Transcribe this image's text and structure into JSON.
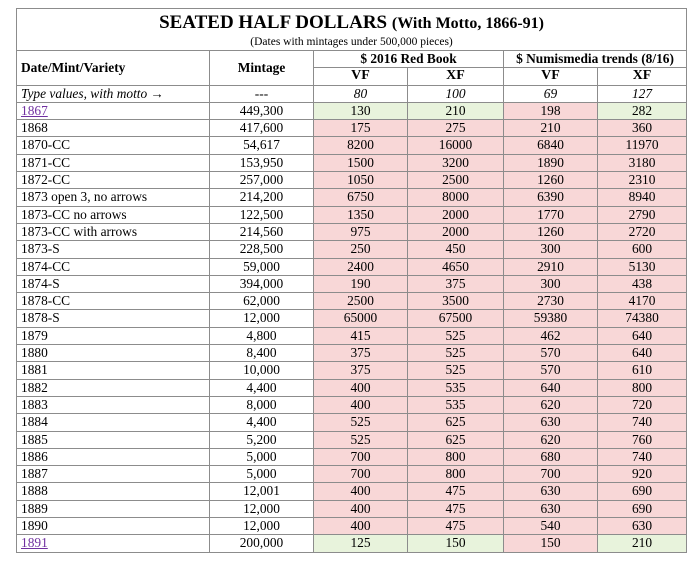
{
  "title": "SEATED HALF DOLLARS",
  "title_paren": "(With Motto, 1866-91)",
  "subtitle": "(Dates with mintages under 500,000 pieces)",
  "headers": {
    "date": "Date/Mint/Variety",
    "mintage": "Mintage",
    "redbook": "$ 2016 Red Book",
    "numismedia": "$ Numismedia trends (8/16)",
    "vf": "VF",
    "xf": "XF"
  },
  "type_row": {
    "label": "Type values, with motto →",
    "mintage": "---",
    "rb_vf": "80",
    "rb_xf": "100",
    "nm_vf": "69",
    "nm_xf": "127"
  },
  "rows": [
    {
      "date": "1867",
      "mintage": "449,300",
      "rb_vf": "130",
      "rb_xf": "210",
      "nm_vf": "198",
      "nm_xf": "282"
    },
    {
      "date": "1868",
      "mintage": "417,600",
      "rb_vf": "175",
      "rb_xf": "275",
      "nm_vf": "210",
      "nm_xf": "360"
    },
    {
      "date": "1870-CC",
      "mintage": "54,617",
      "rb_vf": "8200",
      "rb_xf": "16000",
      "nm_vf": "6840",
      "nm_xf": "11970"
    },
    {
      "date": "1871-CC",
      "mintage": "153,950",
      "rb_vf": "1500",
      "rb_xf": "3200",
      "nm_vf": "1890",
      "nm_xf": "3180"
    },
    {
      "date": "1872-CC",
      "mintage": "257,000",
      "rb_vf": "1050",
      "rb_xf": "2500",
      "nm_vf": "1260",
      "nm_xf": "2310"
    },
    {
      "date": "1873 open 3, no arrows",
      "mintage": "214,200",
      "rb_vf": "6750",
      "rb_xf": "8000",
      "nm_vf": "6390",
      "nm_xf": "8940"
    },
    {
      "date": "1873-CC no arrows",
      "mintage": "122,500",
      "rb_vf": "1350",
      "rb_xf": "2000",
      "nm_vf": "1770",
      "nm_xf": "2790"
    },
    {
      "date": "1873-CC with arrows",
      "mintage": "214,560",
      "rb_vf": "975",
      "rb_xf": "2000",
      "nm_vf": "1260",
      "nm_xf": "2720"
    },
    {
      "date": "1873-S",
      "mintage": "228,500",
      "rb_vf": "250",
      "rb_xf": "450",
      "nm_vf": "300",
      "nm_xf": "600"
    },
    {
      "date": "1874-CC",
      "mintage": "59,000",
      "rb_vf": "2400",
      "rb_xf": "4650",
      "nm_vf": "2910",
      "nm_xf": "5130"
    },
    {
      "date": "1874-S",
      "mintage": "394,000",
      "rb_vf": "190",
      "rb_xf": "375",
      "nm_vf": "300",
      "nm_xf": "438"
    },
    {
      "date": "1878-CC",
      "mintage": "62,000",
      "rb_vf": "2500",
      "rb_xf": "3500",
      "nm_vf": "2730",
      "nm_xf": "4170"
    },
    {
      "date": "1878-S",
      "mintage": "12,000",
      "rb_vf": "65000",
      "rb_xf": "67500",
      "nm_vf": "59380",
      "nm_xf": "74380"
    },
    {
      "date": "1879",
      "mintage": "4,800",
      "rb_vf": "415",
      "rb_xf": "525",
      "nm_vf": "462",
      "nm_xf": "640"
    },
    {
      "date": "1880",
      "mintage": "8,400",
      "rb_vf": "375",
      "rb_xf": "525",
      "nm_vf": "570",
      "nm_xf": "640"
    },
    {
      "date": "1881",
      "mintage": "10,000",
      "rb_vf": "375",
      "rb_xf": "525",
      "nm_vf": "570",
      "nm_xf": "610"
    },
    {
      "date": "1882",
      "mintage": "4,400",
      "rb_vf": "400",
      "rb_xf": "535",
      "nm_vf": "640",
      "nm_xf": "800"
    },
    {
      "date": "1883",
      "mintage": "8,000",
      "rb_vf": "400",
      "rb_xf": "535",
      "nm_vf": "620",
      "nm_xf": "720"
    },
    {
      "date": "1884",
      "mintage": "4,400",
      "rb_vf": "525",
      "rb_xf": "625",
      "nm_vf": "630",
      "nm_xf": "740"
    },
    {
      "date": "1885",
      "mintage": "5,200",
      "rb_vf": "525",
      "rb_xf": "625",
      "nm_vf": "620",
      "nm_xf": "760"
    },
    {
      "date": "1886",
      "mintage": "5,000",
      "rb_vf": "700",
      "rb_xf": "800",
      "nm_vf": "680",
      "nm_xf": "740"
    },
    {
      "date": "1887",
      "mintage": "5,000",
      "rb_vf": "700",
      "rb_xf": "800",
      "nm_vf": "700",
      "nm_xf": "920"
    },
    {
      "date": "1888",
      "mintage": "12,001",
      "rb_vf": "400",
      "rb_xf": "475",
      "nm_vf": "630",
      "nm_xf": "690"
    },
    {
      "date": "1889",
      "mintage": "12,000",
      "rb_vf": "400",
      "rb_xf": "475",
      "nm_vf": "630",
      "nm_xf": "690"
    },
    {
      "date": "1890",
      "mintage": "12,000",
      "rb_vf": "400",
      "rb_xf": "475",
      "nm_vf": "540",
      "nm_xf": "630"
    },
    {
      "date": "1891",
      "mintage": "200,000",
      "rb_vf": "125",
      "rb_xf": "150",
      "nm_vf": "150",
      "nm_xf": "210"
    }
  ],
  "link_dates": [
    "1867",
    "1891"
  ],
  "colors": {
    "pink": "#f8d7d7",
    "green": "#e8f3dc",
    "link": "#7030a0",
    "border": "#8c8c8c"
  }
}
